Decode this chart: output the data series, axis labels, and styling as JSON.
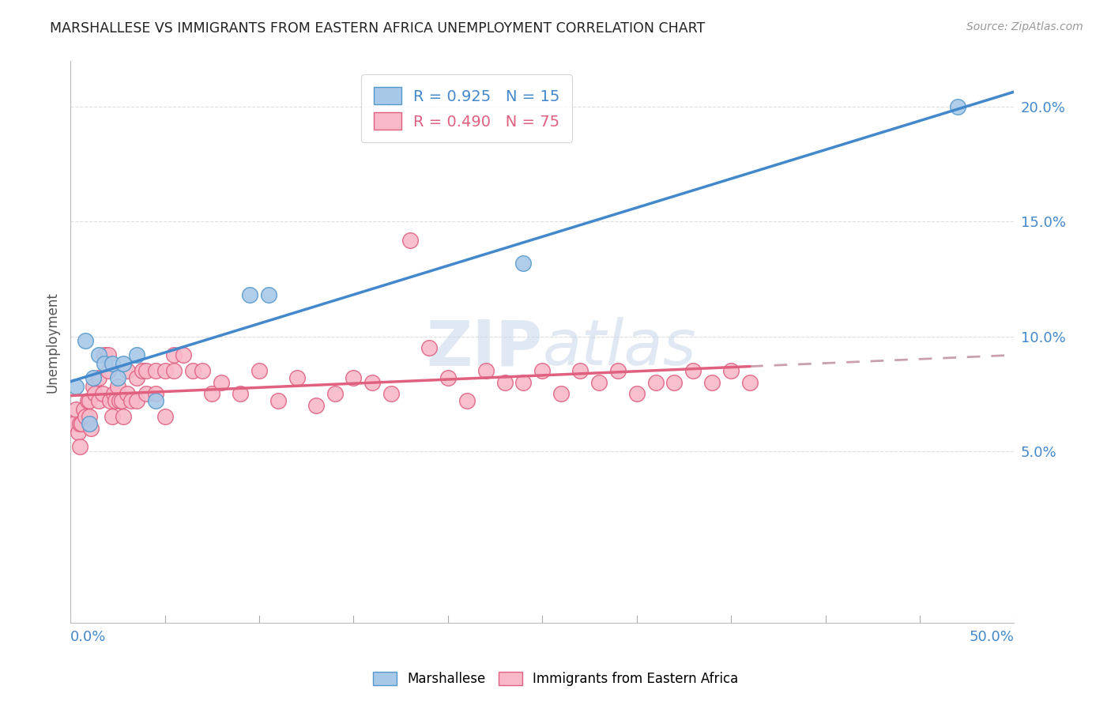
{
  "title": "MARSHALLESE VS IMMIGRANTS FROM EASTERN AFRICA UNEMPLOYMENT CORRELATION CHART",
  "source": "Source: ZipAtlas.com",
  "ylabel": "Unemployment",
  "watermark": "ZIPatlas",
  "legend1_R": "0.925",
  "legend1_N": "15",
  "legend2_R": "0.490",
  "legend2_N": "75",
  "blue_scatter_color": "#a8c8e8",
  "blue_scatter_edge": "#5599cc",
  "pink_scatter_color": "#f8b8c8",
  "pink_scatter_edge": "#e06080",
  "blue_line_color": "#4488cc",
  "pink_line_color": "#e06080",
  "pink_dash_color": "#c8a0b0",
  "axis_label_color": "#4488cc",
  "grid_color": "#dddddd",
  "marshallese_x": [
    0.3,
    0.8,
    1.0,
    1.2,
    1.5,
    1.8,
    2.2,
    2.5,
    2.8,
    3.5,
    4.5,
    9.5,
    10.5,
    24.0,
    47.0
  ],
  "marshallese_y": [
    7.8,
    9.8,
    6.2,
    8.2,
    9.2,
    8.8,
    8.8,
    8.2,
    8.8,
    9.2,
    7.2,
    11.8,
    11.8,
    13.2,
    20.0
  ],
  "eastern_africa_x": [
    0.2,
    0.3,
    0.4,
    0.5,
    0.5,
    0.6,
    0.7,
    0.8,
    0.9,
    1.0,
    1.0,
    1.1,
    1.2,
    1.3,
    1.5,
    1.5,
    1.7,
    1.8,
    2.0,
    2.0,
    2.1,
    2.2,
    2.3,
    2.4,
    2.5,
    2.6,
    2.7,
    2.8,
    3.0,
    3.0,
    3.2,
    3.5,
    3.5,
    3.8,
    4.0,
    4.0,
    4.5,
    4.5,
    5.0,
    5.0,
    5.5,
    5.5,
    6.0,
    6.5,
    7.0,
    7.5,
    8.0,
    9.0,
    10.0,
    11.0,
    12.0,
    13.0,
    14.0,
    15.0,
    16.0,
    17.0,
    18.0,
    19.0,
    20.0,
    21.0,
    22.0,
    23.0,
    24.0,
    25.0,
    26.0,
    27.0,
    28.0,
    29.0,
    30.0,
    31.0,
    32.0,
    33.0,
    34.0,
    35.0,
    36.0
  ],
  "eastern_africa_y": [
    6.2,
    6.8,
    5.8,
    6.2,
    5.2,
    6.2,
    6.8,
    6.5,
    7.2,
    6.5,
    7.2,
    6.0,
    7.8,
    7.5,
    7.2,
    8.2,
    7.5,
    9.2,
    9.2,
    8.5,
    7.2,
    6.5,
    7.5,
    7.2,
    7.8,
    7.2,
    7.2,
    6.5,
    7.5,
    8.5,
    7.2,
    8.2,
    7.2,
    8.5,
    8.5,
    7.5,
    8.5,
    7.5,
    6.5,
    8.5,
    9.2,
    8.5,
    9.2,
    8.5,
    8.5,
    7.5,
    8.0,
    7.5,
    8.5,
    7.2,
    8.2,
    7.0,
    7.5,
    8.2,
    8.0,
    7.5,
    14.2,
    9.5,
    8.2,
    7.2,
    8.5,
    8.0,
    8.0,
    8.5,
    7.5,
    8.5,
    8.0,
    8.5,
    7.5,
    8.0,
    8.0,
    8.5,
    8.0,
    8.5,
    8.0
  ],
  "xlim": [
    0,
    50
  ],
  "ylim_bottom": -2.5,
  "ylim_top": 22,
  "ytick_vals": [
    5,
    10,
    15,
    20
  ],
  "xtick_vals": [
    0,
    5,
    10,
    15,
    20,
    25,
    30,
    35,
    40,
    45,
    50
  ]
}
